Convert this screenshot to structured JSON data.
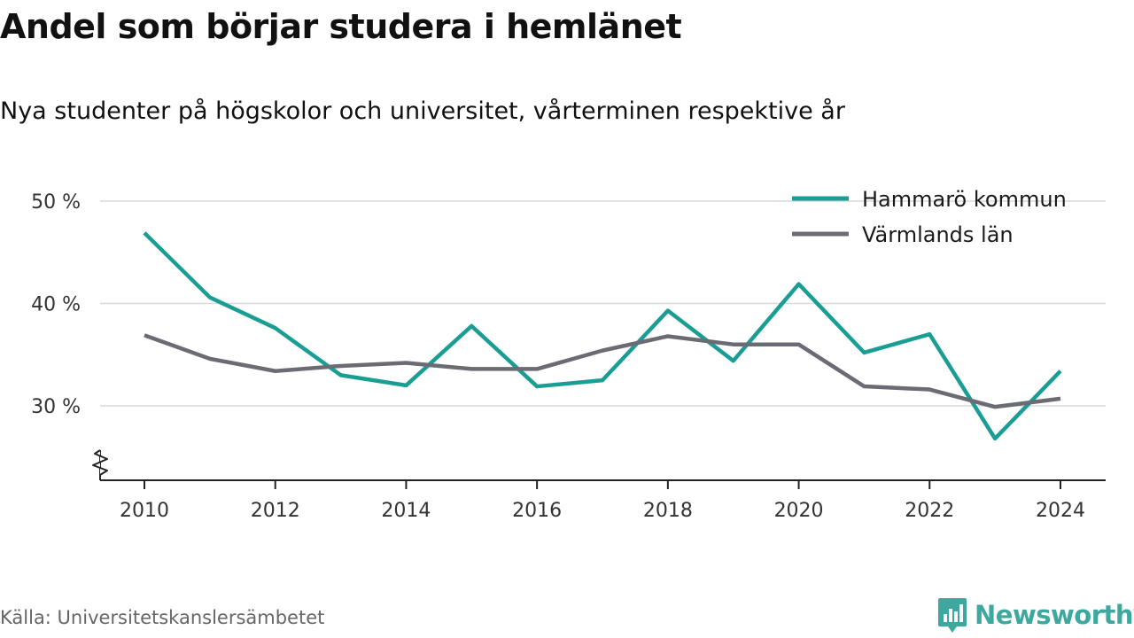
{
  "chart_data": {
    "type": "line",
    "title": "Andel som börjar studera i hemlänet",
    "subtitle": "Nya studenter på högskolor och universitet, vårterminen respektive år",
    "x": [
      2010,
      2011,
      2012,
      2013,
      2014,
      2015,
      2016,
      2017,
      2018,
      2019,
      2020,
      2021,
      2022,
      2023,
      2024
    ],
    "x_ticks": [
      "2010",
      "2012",
      "2014",
      "2016",
      "2018",
      "2020",
      "2022",
      "2024"
    ],
    "y_ticks": [
      "30 %",
      "40 %",
      "50 %"
    ],
    "ylim": [
      25,
      50
    ],
    "axis_break": true,
    "grid": true,
    "legend_position": "top-right",
    "series": [
      {
        "name": "Hammarö kommun",
        "color": "#1a9e94",
        "values": [
          46.9,
          40.6,
          37.6,
          33.0,
          32.0,
          37.8,
          31.9,
          32.5,
          39.3,
          34.4,
          41.9,
          35.2,
          37.0,
          26.8,
          33.4
        ]
      },
      {
        "name": "Värmlands län",
        "color": "#6b6b74",
        "values": [
          36.9,
          34.6,
          33.4,
          33.9,
          34.2,
          33.6,
          33.6,
          35.4,
          36.8,
          36.0,
          36.0,
          31.9,
          31.6,
          29.9,
          30.7
        ]
      }
    ]
  },
  "source": "Källa: Universitetskanslersämbetet",
  "brand": "Newsworthy",
  "logo_icon": "newsworthy-bar-chart-icon",
  "colors": {
    "grid": "#d9d9d9",
    "axis": "#222222",
    "tick_text": "#333333",
    "brand": "#3da89e"
  }
}
